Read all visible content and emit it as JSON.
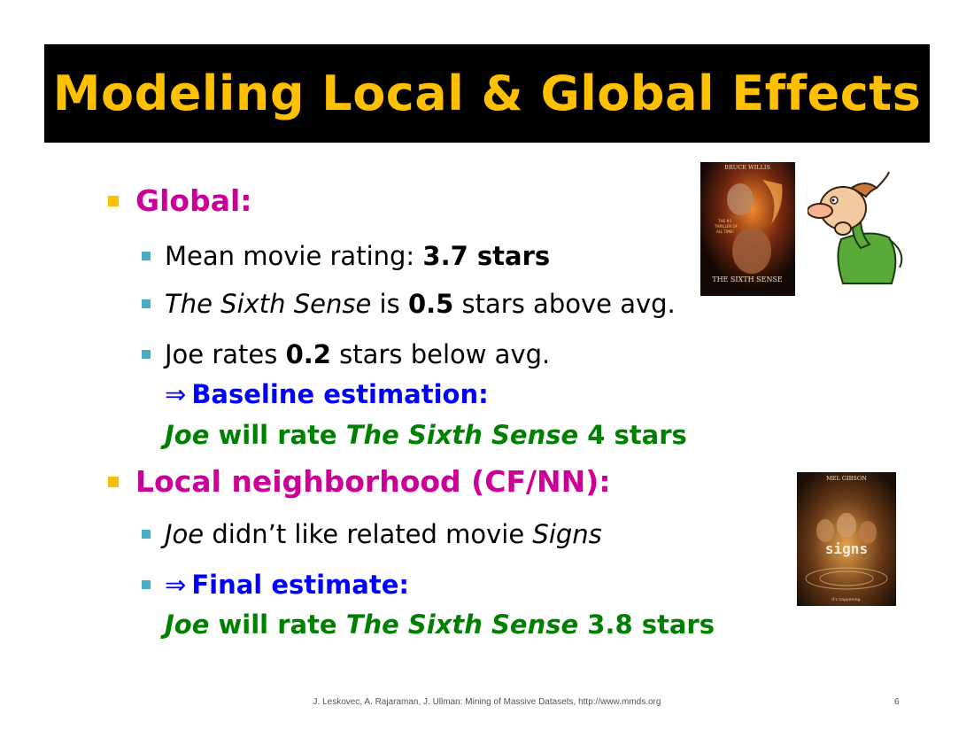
{
  "slide": {
    "title": "Modeling Local & Global Effects",
    "global": {
      "heading": "Global:",
      "mean": {
        "prefix": "Mean movie rating: ",
        "value": "3.7 stars"
      },
      "sixth": {
        "movie": "The Sixth Sense",
        "mid": " is ",
        "value": "0.5",
        "suffix": " stars above avg."
      },
      "joe": {
        "prefix": "Joe rates ",
        "value": "0.2",
        "suffix": " stars below avg."
      },
      "baseline_label": "Baseline estimation:",
      "baseline": {
        "who": "Joe",
        "mid": " will rate ",
        "movie": "The Sixth Sense",
        "value": " 4 stars"
      }
    },
    "local": {
      "heading": "Local neighborhood (CF/NN):",
      "signs_line": {
        "who": "Joe",
        "mid": " didn’t like related movie ",
        "movie": "Signs"
      },
      "final_label": "Final estimate:",
      "final": {
        "who": "Joe",
        "mid": " will rate ",
        "movie": "The Sixth Sense",
        "value": " 3.8 stars"
      }
    },
    "footer": "J. Leskovec, A. Rajaraman, J. Ullman: Mining of Massive Datasets, http://www.mmds.org",
    "page_number": "6",
    "posters": {
      "sixth_sense": {
        "top": "BRUCE WILLIS",
        "tagline1": "THE #1",
        "tagline2": "THRILLER OF",
        "tagline3": "ALL TIME!",
        "bottom": "THE SIXTH SENSE"
      },
      "signs": {
        "top": "MEL GIBSON",
        "logo": "signs",
        "bottom": "It's happening."
      }
    }
  }
}
